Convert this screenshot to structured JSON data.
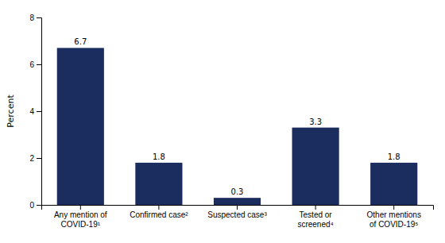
{
  "chart_data": {
    "type": "bar",
    "categories": [
      "Any mention of\nCOVID-19¹",
      "Confirmed case²",
      "Suspected case³",
      "Tested or\nscreened⁴",
      "Other mentions\nof COVID-19⁵"
    ],
    "values": [
      6.7,
      1.8,
      0.3,
      3.3,
      1.8
    ],
    "color": "#1b2d5e",
    "ylabel": "Percent",
    "ylim": [
      0,
      8
    ],
    "yticks": [
      0,
      2,
      4,
      6,
      8
    ],
    "grid": false,
    "data_labels": true
  }
}
